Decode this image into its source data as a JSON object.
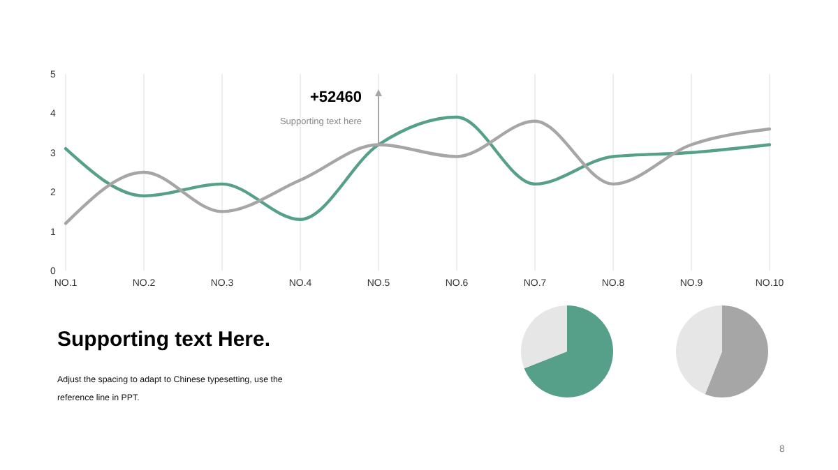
{
  "chart_data": [
    {
      "type": "line",
      "categories": [
        "NO.1",
        "NO.2",
        "NO.3",
        "NO.4",
        "NO.5",
        "NO.6",
        "NO.7",
        "NO.8",
        "NO.9",
        "NO.10"
      ],
      "series": [
        {
          "color": "#56a08a",
          "values": [
            3.1,
            1.9,
            2.2,
            1.3,
            3.2,
            3.9,
            2.2,
            2.9,
            3.0,
            3.2
          ]
        },
        {
          "color": "#a6a6a6",
          "values": [
            1.2,
            2.5,
            1.5,
            2.3,
            3.2,
            2.9,
            3.8,
            2.2,
            3.2,
            3.6
          ]
        }
      ],
      "ylim": [
        0,
        5
      ],
      "yticks": [
        0,
        1,
        2,
        3,
        4,
        5
      ],
      "grid": "x",
      "marker": "none",
      "line_style": "solid",
      "annotations": [
        "+52460",
        "Supporting text here"
      ]
    },
    {
      "type": "other",
      "title": "Supporting text Here.",
      "annotations": [
        "Adjust the spacing to adapt to Chinese typesetting, use the reference line in PPT.",
        "8"
      ]
    },
    {
      "type": "pie",
      "categories": [
        null,
        null
      ],
      "values": [
        69,
        31
      ],
      "colors": [
        "#56a08a",
        "#e6e6e6"
      ]
    },
    {
      "type": "pie",
      "categories": [
        null,
        null
      ],
      "values": [
        56,
        44
      ],
      "colors": [
        "#a6a6a6",
        "#e6e6e6"
      ]
    }
  ]
}
